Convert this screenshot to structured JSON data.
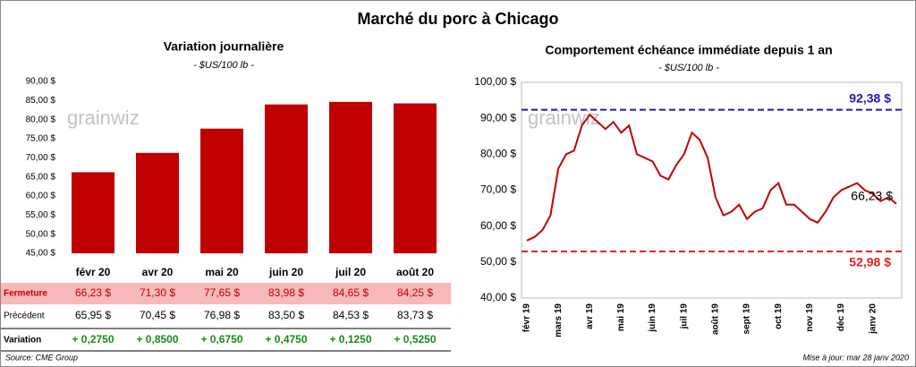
{
  "title": "Marché du porc à Chicago",
  "watermark": "grainwiz",
  "source": "Source: CME Group",
  "updated": "Mise à jour: mar 28 janv 2020",
  "chart_data": [
    {
      "type": "bar",
      "title": "Variation journalière",
      "subtitle": "- $US/100 lb -",
      "color": "#c00000",
      "categories": [
        "févr 20",
        "avr 20",
        "mai 20",
        "juin 20",
        "juil 20",
        "août 20"
      ],
      "values": [
        66.23,
        71.3,
        77.65,
        83.98,
        84.65,
        84.25
      ],
      "ylim": [
        45,
        90
      ],
      "yticks": [
        {
          "value": 45,
          "label": "45,00 $"
        },
        {
          "value": 50,
          "label": "50,00 $"
        },
        {
          "value": 55,
          "label": "55,00 $"
        },
        {
          "value": 60,
          "label": "60,00 $"
        },
        {
          "value": 65,
          "label": "65,00 $"
        },
        {
          "value": 70,
          "label": "70,00 $"
        },
        {
          "value": 75,
          "label": "75,00 $"
        },
        {
          "value": 80,
          "label": "80,00 $"
        },
        {
          "value": 85,
          "label": "85,00 $"
        },
        {
          "value": 90,
          "label": "90,00 $"
        }
      ],
      "grid": false
    },
    {
      "type": "line",
      "title": "Comportement  échéance immédiate depuis 1 an",
      "subtitle": "- $US/100 lb -",
      "color": "#c00000",
      "categories": [
        "févr 19",
        null,
        null,
        null,
        "mars 19",
        null,
        null,
        null,
        "avr 19",
        null,
        null,
        null,
        "mai 19",
        null,
        null,
        null,
        "juin 19",
        null,
        null,
        null,
        "juil 19",
        null,
        null,
        null,
        "août 19",
        null,
        null,
        null,
        "sept 19",
        null,
        null,
        null,
        "oct 19",
        null,
        null,
        null,
        "nov 19",
        null,
        null,
        null,
        "déc 19",
        null,
        null,
        null,
        "janv 20",
        null,
        null,
        null
      ],
      "values": [
        56,
        57,
        59,
        63,
        76,
        80,
        81,
        88,
        91,
        89,
        87,
        89,
        86,
        88,
        80,
        79,
        78,
        74,
        73,
        77,
        80,
        86,
        84,
        79,
        68,
        63,
        64,
        66,
        62,
        64,
        65,
        70,
        72,
        66,
        66,
        64,
        62,
        61,
        64,
        68,
        70,
        71,
        72,
        70,
        69,
        67,
        68,
        66.23
      ],
      "last_value_label": "66,23 $",
      "reference_lines": [
        {
          "value": 92.38,
          "label": "92,38 $",
          "color": "#1c1ca8"
        },
        {
          "value": 52.98,
          "label": "52,98 $",
          "color": "#e02020"
        }
      ],
      "ylim": [
        40,
        100
      ],
      "yticks": [
        {
          "value": 40,
          "label": "40,00 $"
        },
        {
          "value": 50,
          "label": "50,00 $"
        },
        {
          "value": 60,
          "label": "60,00 $"
        },
        {
          "value": 70,
          "label": "70,00 $"
        },
        {
          "value": 80,
          "label": "80,00 $"
        },
        {
          "value": 90,
          "label": "90,00 $"
        },
        {
          "value": 100,
          "label": "100,00 $"
        }
      ],
      "grid": false
    }
  ],
  "table": {
    "rows": [
      {
        "label": "Fermeture",
        "cells": [
          "66,23 $",
          "71,30 $",
          "77,65 $",
          "83,98 $",
          "84,65 $",
          "84,25 $"
        ]
      },
      {
        "label": "Précédent",
        "cells": [
          "65,95 $",
          "70,45 $",
          "76,98 $",
          "83,50 $",
          "84,53 $",
          "83,73 $"
        ]
      },
      {
        "label": "Variation",
        "cells": [
          "+ 0,2750",
          "+ 0,8500",
          "+ 0,6750",
          "+ 0,4750",
          "+ 0,1250",
          "+ 0,5250"
        ]
      }
    ]
  }
}
